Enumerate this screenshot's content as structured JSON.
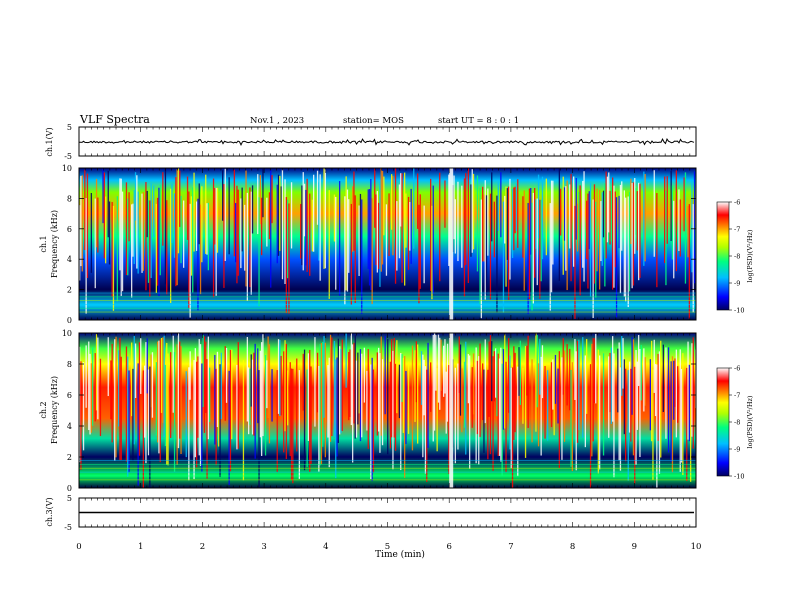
{
  "header": {
    "title": "VLF Spectra",
    "date": "Nov.1  , 2023",
    "station": "station= MOS",
    "start": "start  UT  =   8  : 0   : 1"
  },
  "chart_data": [
    {
      "type": "line",
      "panel": "ch1-waveform",
      "ylabel": "ch.1(V)",
      "ylim": [
        -5,
        5
      ],
      "yticks": [
        "5",
        "-5"
      ],
      "xlim": [
        0,
        10
      ],
      "series": [
        {
          "level": 0,
          "description_only": true
        }
      ]
    },
    {
      "type": "heatmap",
      "panel": "ch1-spectrogram",
      "ylabel": "ch.1\nFrequency (kHz)",
      "ylim": [
        0,
        10
      ],
      "yticks": [
        "0",
        "2",
        "4",
        "6",
        "8",
        "10"
      ],
      "xlim": [
        0,
        10
      ],
      "colorbar": {
        "label": "log(PSD)(V²/Hz)",
        "range": [
          -10,
          -6
        ],
        "ticks": [
          "-6",
          "-7",
          "-8",
          "-9",
          "-10"
        ]
      }
    },
    {
      "type": "heatmap",
      "panel": "ch2-spectrogram",
      "ylabel": "ch.2\nFrequency (kHz)",
      "ylim": [
        0,
        10
      ],
      "yticks": [
        "0",
        "2",
        "4",
        "6",
        "8",
        "10"
      ],
      "xlim": [
        0,
        10
      ],
      "colorbar": {
        "label": "log(PSD)(V²/Hz)",
        "range": [
          -10,
          -6
        ],
        "ticks": [
          "-6",
          "-7",
          "-8",
          "-9",
          "-10"
        ]
      }
    },
    {
      "type": "line",
      "panel": "ch3-waveform",
      "ylabel": "ch.3(V)",
      "ylim": [
        -5,
        5
      ],
      "yticks": [
        "5",
        "-5"
      ],
      "xlim": [
        0,
        10
      ],
      "series": [
        {
          "level": 0
        }
      ]
    }
  ],
  "xaxis": {
    "label": "Time  (min)",
    "ticks": [
      "0",
      "1",
      "2",
      "3",
      "4",
      "5",
      "6",
      "7",
      "8",
      "9",
      "10"
    ]
  },
  "labels": {
    "ch1v": "ch.1(V)",
    "ch1a": "ch.1",
    "ch1b": "Frequency (kHz)",
    "ch2a": "ch.2",
    "ch2b": "Frequency (kHz)",
    "ch3v": "ch.3(V)",
    "cbar": "log(PSD)(V²/Hz)"
  },
  "colors": {
    "scale": [
      "#000060",
      "#0000ff",
      "#00bfff",
      "#00ff80",
      "#b0ff00",
      "#ffff00",
      "#ff8000",
      "#ff0000",
      "#ffffff"
    ]
  }
}
